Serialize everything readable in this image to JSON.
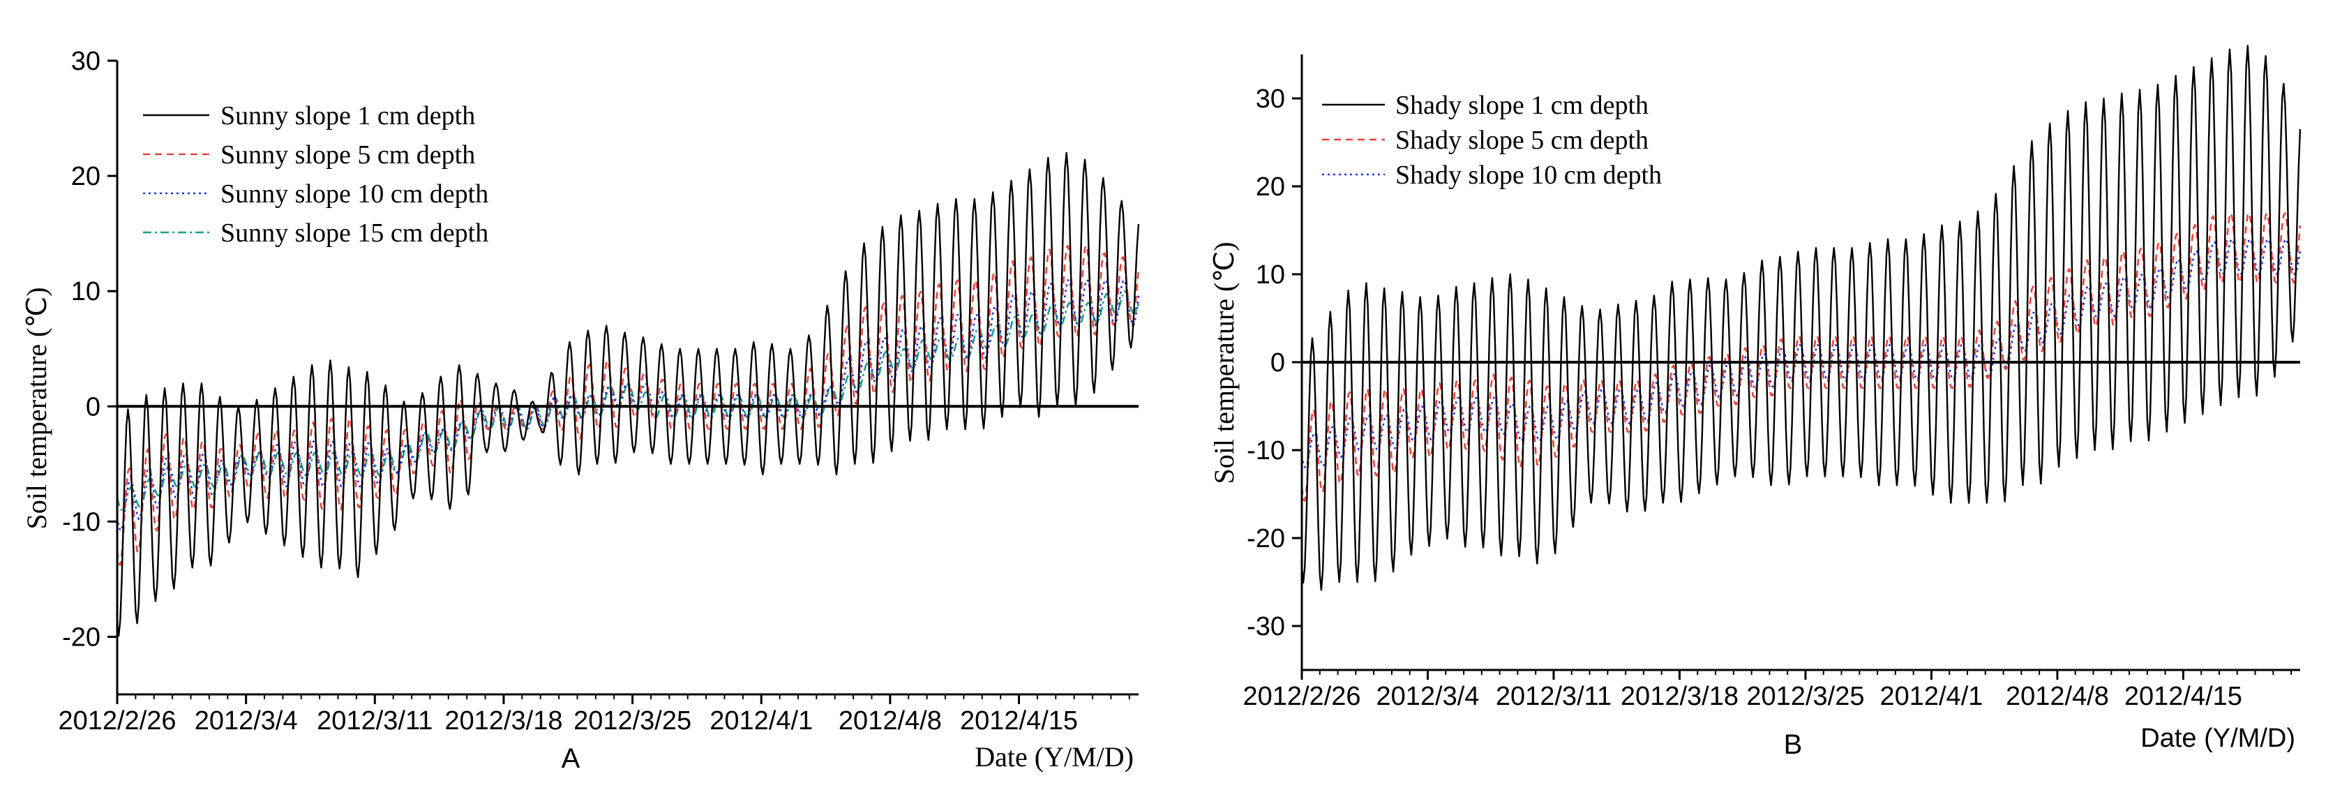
{
  "chart_data": [
    {
      "type": "line",
      "panel": "A",
      "xlabel": "Date (Y/M/D)",
      "ylabel": "Soil temperature (℃)",
      "ylim": [
        -25,
        30
      ],
      "xlim_days": [
        0,
        55.5
      ],
      "yticks": [
        -20,
        -10,
        0,
        10,
        20,
        30
      ],
      "ytick_labels": [
        "-20",
        "-10",
        "0",
        "10",
        "20",
        "30"
      ],
      "xticks": [
        0,
        7,
        14,
        21,
        28,
        35,
        42,
        49
      ],
      "xtick_labels": [
        "2012/2/26",
        "2012/3/4",
        "2012/3/11",
        "2012/3/18",
        "2012/3/25",
        "2012/4/1",
        "2012/4/8",
        "2012/4/15"
      ],
      "zero_line": true,
      "legend_position": "top-left",
      "series": [
        {
          "name": "Sunny slope 1 cm depth",
          "color": "#000000",
          "dash": "solid",
          "mean": [
            -11,
            -9,
            -8,
            -7,
            -6,
            -6,
            -6,
            -5,
            -5,
            -5,
            -5,
            -5,
            -5,
            -6,
            -5,
            -5,
            -4,
            -3,
            -3,
            -2,
            -1,
            -1,
            -1,
            -1,
            0,
            0,
            1,
            1,
            1,
            1,
            0,
            0,
            0,
            0,
            0,
            0,
            0,
            0,
            1,
            2,
            4,
            5,
            6,
            7,
            7,
            8,
            8,
            8,
            9,
            10,
            10,
            11,
            11,
            11,
            11,
            11,
            11
          ],
          "amp": [
            9,
            10,
            9,
            9,
            8,
            8,
            6,
            5,
            6,
            7,
            8,
            9,
            9,
            9,
            8,
            6,
            4,
            5,
            6,
            6,
            3,
            3,
            2,
            1,
            5,
            6,
            6,
            6,
            5,
            5,
            5,
            5,
            5,
            5,
            5,
            6,
            5,
            5,
            6,
            8,
            9,
            10,
            10,
            10,
            10,
            10,
            10,
            10,
            10,
            10,
            11,
            11,
            11,
            10,
            8,
            6,
            5
          ]
        },
        {
          "name": "Sunny slope 5 cm depth",
          "color": "#e8443a",
          "dash": "10,7",
          "mean": [
            -10,
            -9,
            -7,
            -6,
            -6,
            -6,
            -6,
            -5,
            -5,
            -5,
            -5,
            -5,
            -5,
            -5,
            -5,
            -5,
            -4,
            -3,
            -3,
            -2,
            -1,
            -1,
            -1,
            -1,
            0,
            0,
            1,
            1,
            1,
            1,
            0,
            0,
            0,
            0,
            0,
            0,
            0,
            0,
            1,
            2,
            4,
            5,
            5,
            6,
            6,
            7,
            7,
            7,
            8,
            9,
            9,
            10,
            10,
            10,
            10,
            10,
            10
          ],
          "amp": [
            4,
            4,
            4,
            4,
            3,
            3,
            2,
            2,
            3,
            3,
            3,
            4,
            4,
            4,
            3,
            3,
            2,
            2,
            3,
            3,
            1,
            1,
            1,
            1,
            2,
            3,
            3,
            3,
            2,
            2,
            2,
            2,
            2,
            2,
            2,
            2,
            2,
            2,
            3,
            3,
            4,
            4,
            4,
            4,
            4,
            4,
            4,
            4,
            4,
            4,
            4,
            4,
            4,
            4,
            3,
            3,
            3
          ]
        },
        {
          "name": "Sunny slope 10 cm depth",
          "color": "#1f34e0",
          "dash": "3,5",
          "mean": [
            -9,
            -8,
            -7,
            -6,
            -6,
            -6,
            -6,
            -5,
            -5,
            -5,
            -5,
            -5,
            -5,
            -5,
            -5,
            -5,
            -4,
            -3,
            -3,
            -2,
            -1,
            -1,
            -1,
            -1,
            0,
            0,
            0,
            1,
            1,
            1,
            0,
            0,
            0,
            0,
            0,
            0,
            0,
            0,
            0,
            1,
            3,
            4,
            4,
            5,
            5,
            6,
            6,
            6,
            7,
            8,
            8,
            9,
            9,
            9,
            9,
            9,
            9
          ],
          "amp": [
            2,
            2,
            2,
            2,
            2,
            2,
            1,
            1,
            1,
            2,
            2,
            2,
            2,
            2,
            2,
            1,
            1,
            1,
            1,
            1,
            1,
            1,
            1,
            1,
            1,
            1,
            1,
            1,
            1,
            1,
            1,
            1,
            1,
            1,
            1,
            1,
            1,
            1,
            1,
            1,
            2,
            2,
            2,
            2,
            2,
            2,
            2,
            2,
            2,
            2,
            2,
            2,
            2,
            2,
            2,
            2,
            2
          ]
        },
        {
          "name": "Sunny slope 15 cm depth",
          "color": "#1a9e88",
          "dash": "12,5,3,5",
          "mean": [
            -8,
            -8,
            -7,
            -6,
            -6,
            -6,
            -6,
            -5,
            -5,
            -5,
            -5,
            -5,
            -5,
            -5,
            -5,
            -5,
            -4,
            -3,
            -3,
            -2,
            -1,
            -1,
            -1,
            -1,
            0,
            0,
            0,
            1,
            1,
            0,
            0,
            0,
            0,
            0,
            0,
            0,
            0,
            0,
            0,
            1,
            2,
            3,
            4,
            4,
            5,
            5,
            5,
            6,
            6,
            7,
            7,
            8,
            8,
            8,
            9,
            9,
            9
          ],
          "amp": [
            1,
            1,
            1,
            1,
            1,
            1,
            1,
            1,
            1,
            1,
            1,
            1,
            1,
            1,
            1,
            1,
            1,
            1,
            1,
            1,
            1,
            1,
            1,
            1,
            1,
            1,
            1,
            1,
            1,
            1,
            1,
            1,
            1,
            1,
            1,
            1,
            1,
            1,
            1,
            1,
            1,
            1,
            1,
            1,
            1,
            1,
            1,
            1,
            1,
            1,
            1,
            1,
            1,
            1,
            1,
            1,
            1
          ]
        }
      ]
    },
    {
      "type": "line",
      "panel": "B",
      "xlabel": "Date (Y/M/D)",
      "ylabel": "Soil temperature (℃)",
      "ylim": [
        -35,
        35
      ],
      "xlim_days": [
        0,
        55.5
      ],
      "yticks": [
        -30,
        -20,
        -10,
        0,
        10,
        20,
        30
      ],
      "ytick_labels": [
        "-30",
        "-20",
        "-10",
        "0",
        "10",
        "20",
        "30"
      ],
      "xticks": [
        0,
        7,
        14,
        21,
        28,
        35,
        42,
        49
      ],
      "xtick_labels": [
        "2012/2/26",
        "2012/3/4",
        "2012/3/11",
        "2012/3/18",
        "2012/3/25",
        "2012/4/1",
        "2012/4/8",
        "2012/4/15"
      ],
      "zero_line": true,
      "legend_position": "top-left",
      "series": [
        {
          "name": "Shady slope 1 cm depth",
          "color": "#000000",
          "dash": "solid",
          "mean": [
            -12,
            -11,
            -9,
            -8,
            -8,
            -8,
            -7,
            -7,
            -6,
            -6,
            -6,
            -6,
            -6,
            -7,
            -7,
            -6,
            -5,
            -5,
            -5,
            -5,
            -4,
            -3,
            -3,
            -2,
            -2,
            -1,
            -1,
            -1,
            0,
            0,
            0,
            0,
            0,
            0,
            0,
            0,
            0,
            0,
            1,
            2,
            5,
            6,
            8,
            9,
            10,
            10,
            11,
            11,
            12,
            13,
            14,
            15,
            16,
            16,
            16,
            16,
            16
          ],
          "amp": [
            13,
            15,
            16,
            17,
            17,
            16,
            15,
            14,
            14,
            15,
            15,
            16,
            16,
            16,
            15,
            13,
            11,
            11,
            12,
            12,
            12,
            13,
            12,
            12,
            11,
            12,
            13,
            13,
            13,
            13,
            13,
            13,
            14,
            14,
            14,
            15,
            16,
            16,
            17,
            18,
            19,
            20,
            20,
            20,
            20,
            20,
            20,
            20,
            20,
            20,
            20,
            20,
            20,
            20,
            18,
            14,
            10
          ]
        },
        {
          "name": "Shady slope 5 cm depth",
          "color": "#e8443a",
          "dash": "10,7",
          "mean": [
            -11,
            -10,
            -9,
            -8,
            -8,
            -8,
            -7,
            -7,
            -6,
            -6,
            -6,
            -6,
            -7,
            -7,
            -7,
            -6,
            -5,
            -5,
            -5,
            -5,
            -4,
            -3,
            -3,
            -2,
            -2,
            -1,
            -1,
            0,
            0,
            0,
            0,
            0,
            0,
            0,
            0,
            0,
            0,
            0,
            1,
            2,
            4,
            5,
            6,
            7,
            8,
            8,
            9,
            9,
            10,
            11,
            12,
            13,
            13,
            13,
            13,
            13,
            13
          ],
          "amp": [
            5,
            5,
            5,
            5,
            5,
            5,
            4,
            4,
            4,
            4,
            4,
            5,
            5,
            5,
            4,
            4,
            3,
            3,
            3,
            3,
            3,
            3,
            3,
            3,
            3,
            3,
            3,
            3,
            3,
            3,
            3,
            3,
            3,
            3,
            3,
            3,
            3,
            3,
            3,
            3,
            4,
            4,
            4,
            4,
            4,
            4,
            4,
            4,
            4,
            4,
            4,
            4,
            4,
            4,
            4,
            4,
            4
          ]
        },
        {
          "name": "Shady slope 10 cm depth",
          "color": "#1f34e0",
          "dash": "3,5",
          "mean": [
            -10,
            -10,
            -9,
            -8,
            -8,
            -8,
            -7,
            -7,
            -6,
            -6,
            -6,
            -6,
            -7,
            -7,
            -7,
            -6,
            -5,
            -5,
            -5,
            -5,
            -4,
            -3,
            -3,
            -2,
            -2,
            -1,
            -1,
            0,
            0,
            0,
            0,
            0,
            0,
            0,
            0,
            0,
            0,
            0,
            0,
            1,
            3,
            4,
            5,
            6,
            7,
            7,
            8,
            8,
            9,
            10,
            11,
            12,
            12,
            12,
            12,
            12,
            12
          ],
          "amp": [
            2,
            2,
            2,
            2,
            2,
            2,
            2,
            2,
            2,
            2,
            2,
            2,
            2,
            2,
            2,
            2,
            2,
            2,
            2,
            2,
            2,
            2,
            2,
            2,
            2,
            2,
            2,
            2,
            2,
            2,
            2,
            2,
            2,
            2,
            2,
            2,
            2,
            2,
            2,
            2,
            2,
            2,
            2,
            2,
            2,
            2,
            2,
            2,
            2,
            2,
            2,
            2,
            2,
            2,
            2,
            2,
            2
          ]
        }
      ]
    }
  ],
  "panels": {
    "A": {
      "letter": "A"
    },
    "B": {
      "letter": "B"
    }
  }
}
